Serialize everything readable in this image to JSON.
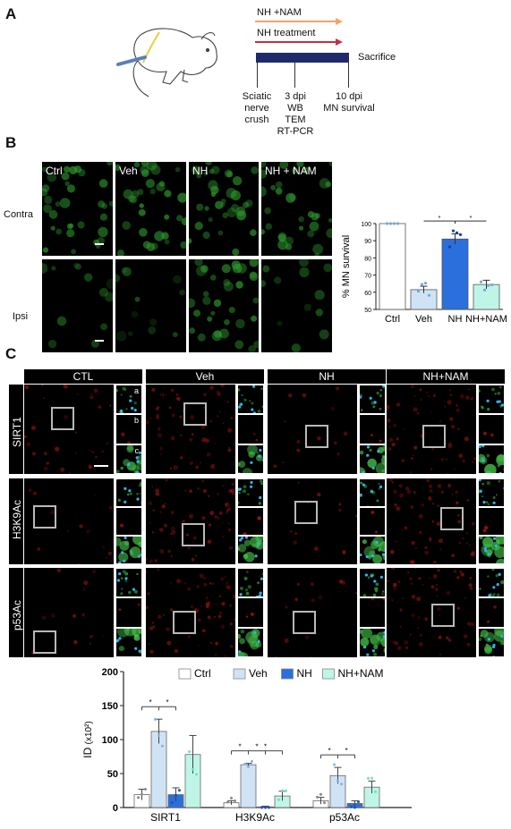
{
  "panels": {
    "a": {
      "letter": "A"
    },
    "b": {
      "letter": "B"
    },
    "c": {
      "letter": "C"
    }
  },
  "timeline": {
    "arrow_nam_label": "NH +NAM",
    "arrow_nam_color": "#f4a46a",
    "arrow_nh_label": "NH treatment",
    "arrow_nh_color": "#c0304a",
    "bar_color": "#1f2a6b",
    "end_label": "Sacrifice",
    "steps": [
      {
        "line1": "Sciatic",
        "line2": "nerve",
        "line3": "crush"
      },
      {
        "line1": "3 dpi",
        "line2": "WB",
        "line3": "TEM",
        "line4": "RT-PCR"
      },
      {
        "line1": "10 dpi",
        "line2": "MN survival"
      }
    ]
  },
  "micrographs_b": {
    "columns": [
      "Ctrl",
      "Veh",
      "NH",
      "NH + NAM"
    ],
    "rows": [
      "Contra",
      "Ipsi"
    ]
  },
  "micrographs_c": {
    "columns": [
      "CTL",
      "Veh",
      "NH",
      "NH+NAM"
    ],
    "rows": [
      "SIRT1",
      "H3K9Ac",
      "p53Ac"
    ],
    "inset_labels": [
      "a",
      "b",
      "c"
    ]
  },
  "colors": {
    "ctrl": "#ffffff",
    "veh": "#cfe3f5",
    "nh": "#2a6fdc",
    "nh_nam": "#bff5e6",
    "fluor_green": "#2f9a2f",
    "fluor_red": "#c01818"
  },
  "chart_data": [
    {
      "type": "bar",
      "categories": [
        "Ctrl",
        "Veh",
        "NH",
        "NH+NAM"
      ],
      "values": [
        100,
        61.5,
        91,
        64.5
      ],
      "errors": [
        0,
        2,
        3,
        2.5
      ],
      "ylabel": "% MN survival",
      "ylim": [
        50,
        100
      ],
      "yticks": [
        50,
        60,
        70,
        80,
        90,
        100
      ],
      "significance": [
        "*",
        "*"
      ]
    },
    {
      "type": "bar",
      "categories": [
        "SIRT1",
        "H3K9Ac",
        "p53Ac"
      ],
      "series": [
        {
          "name": "Ctrl",
          "values": [
            19,
            7,
            10
          ],
          "errors": [
            8,
            3,
            5
          ]
        },
        {
          "name": "Veh",
          "values": [
            112,
            63,
            47
          ],
          "errors": [
            18,
            2,
            12
          ]
        },
        {
          "name": "NH",
          "values": [
            19,
            1,
            6
          ],
          "errors": [
            10,
            1,
            4
          ]
        },
        {
          "name": "NH+NAM",
          "values": [
            78,
            17,
            30
          ],
          "errors": [
            28,
            7,
            9
          ]
        }
      ],
      "ylabel": "ID",
      "ylabel_unit": "(x10²)",
      "ylim": [
        0,
        200
      ],
      "yticks": [
        0,
        50,
        100,
        150,
        200
      ],
      "significance": [
        "*",
        "*",
        "*",
        "*",
        "*",
        "*",
        "*"
      ]
    }
  ]
}
